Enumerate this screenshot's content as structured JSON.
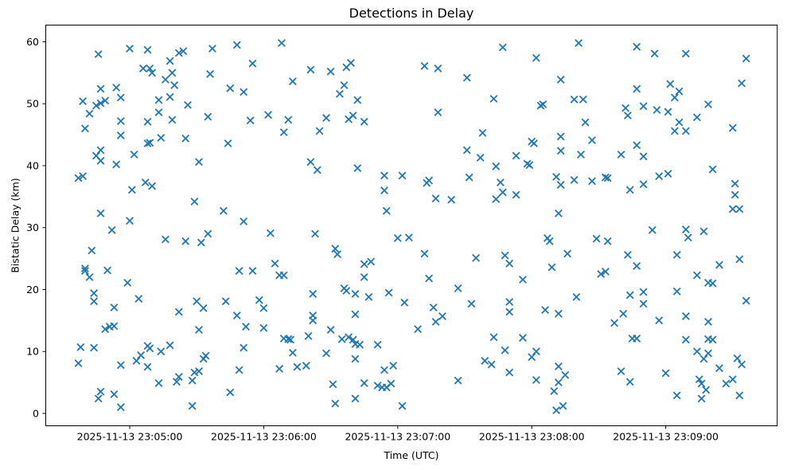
{
  "chart_data": {
    "type": "scatter",
    "title": "Detections in Delay",
    "xlabel": "Time (UTC)",
    "ylabel": "Bistatic Delay (km)",
    "marker": "x",
    "marker_color": "#1f77b4",
    "grid": false,
    "legend": null,
    "x_unit": "seconds after 2025-11-13 23:00:00 UTC",
    "xlim": [
      262.4,
      589.9
    ],
    "ylim": [
      -2.0,
      62.7
    ],
    "x_ticks": [
      {
        "value": 300,
        "label": "2025-11-13 23:05:00"
      },
      {
        "value": 360,
        "label": "2025-11-13 23:06:00"
      },
      {
        "value": 420,
        "label": "2025-11-13 23:07:00"
      },
      {
        "value": 480,
        "label": "2025-11-13 23:08:00"
      },
      {
        "value": 540,
        "label": "2025-11-13 23:09:00"
      }
    ],
    "y_ticks": [
      {
        "value": 0,
        "label": "0"
      },
      {
        "value": 10,
        "label": "10"
      },
      {
        "value": 20,
        "label": "20"
      },
      {
        "value": 30,
        "label": "30"
      },
      {
        "value": 40,
        "label": "40"
      },
      {
        "value": 50,
        "label": "50"
      },
      {
        "value": 60,
        "label": "60"
      }
    ],
    "points": [
      [
        286,
        58.0
      ],
      [
        300,
        58.9
      ],
      [
        308,
        58.7
      ],
      [
        322,
        58.2
      ],
      [
        324,
        58.5
      ],
      [
        337,
        58.9
      ],
      [
        318,
        56.9
      ],
      [
        306,
        55.7
      ],
      [
        309,
        55.7
      ],
      [
        310,
        55.0
      ],
      [
        319,
        55.0
      ],
      [
        336,
        54.8
      ],
      [
        316,
        53.9
      ],
      [
        320,
        53.0
      ],
      [
        345,
        52.5
      ],
      [
        287,
        52.4
      ],
      [
        294,
        52.6
      ],
      [
        296,
        51.0
      ],
      [
        279,
        50.4
      ],
      [
        313,
        50.6
      ],
      [
        318,
        51.1
      ],
      [
        326,
        49.8
      ],
      [
        285,
        49.7
      ],
      [
        287,
        50.1
      ],
      [
        289,
        50.5
      ],
      [
        282,
        48.4
      ],
      [
        335,
        47.9
      ],
      [
        313,
        48.6
      ],
      [
        296,
        47.2
      ],
      [
        308,
        47.1
      ],
      [
        319,
        47.4
      ],
      [
        280,
        46.0
      ],
      [
        296,
        44.9
      ],
      [
        308,
        43.6
      ],
      [
        309,
        43.7
      ],
      [
        314,
        44.5
      ],
      [
        325,
        44.4
      ],
      [
        344,
        43.6
      ],
      [
        287,
        42.5
      ],
      [
        285,
        41.6
      ],
      [
        287,
        40.8
      ],
      [
        302,
        41.8
      ],
      [
        294,
        40.2
      ],
      [
        331,
        40.6
      ],
      [
        277,
        38.0
      ],
      [
        279,
        38.3
      ],
      [
        307,
        37.3
      ],
      [
        310,
        36.7
      ],
      [
        301,
        36.1
      ],
      [
        329,
        34.2
      ],
      [
        342,
        32.7
      ],
      [
        287,
        32.3
      ],
      [
        300,
        31.1
      ],
      [
        348,
        59.5
      ],
      [
        368,
        59.8
      ],
      [
        355,
        56.5
      ],
      [
        381,
        55.5
      ],
      [
        390,
        55.2
      ],
      [
        397,
        55.9
      ],
      [
        399,
        56.6
      ],
      [
        373,
        53.6
      ],
      [
        351,
        51.9
      ],
      [
        396,
        53.0
      ],
      [
        394,
        51.6
      ],
      [
        402,
        50.6
      ],
      [
        362,
        48.2
      ],
      [
        354,
        47.3
      ],
      [
        371,
        47.4
      ],
      [
        388,
        47.7
      ],
      [
        398,
        47.5
      ],
      [
        400,
        48.1
      ],
      [
        405,
        47.1
      ],
      [
        369,
        45.4
      ],
      [
        385,
        45.6
      ],
      [
        381,
        40.6
      ],
      [
        384,
        39.3
      ],
      [
        402,
        39.6
      ],
      [
        414,
        38.4
      ],
      [
        422,
        38.4
      ],
      [
        414,
        36.0
      ],
      [
        351,
        31.0
      ],
      [
        415,
        32.7
      ],
      [
        467,
        59.1
      ],
      [
        501,
        59.8
      ],
      [
        482,
        57.4
      ],
      [
        432,
        56.1
      ],
      [
        438,
        55.7
      ],
      [
        451,
        54.2
      ],
      [
        493,
        53.9
      ],
      [
        463,
        50.8
      ],
      [
        499,
        50.7
      ],
      [
        503,
        50.7
      ],
      [
        484,
        49.7
      ],
      [
        485,
        49.9
      ],
      [
        438,
        48.6
      ],
      [
        504,
        47.0
      ],
      [
        458,
        45.3
      ],
      [
        480,
        43.9
      ],
      [
        481,
        43.6
      ],
      [
        493,
        44.7
      ],
      [
        507,
        44.1
      ],
      [
        451,
        42.5
      ],
      [
        457,
        41.3
      ],
      [
        473,
        41.6
      ],
      [
        493,
        42.4
      ],
      [
        502,
        41.8
      ],
      [
        464,
        39.9
      ],
      [
        478,
        40.3
      ],
      [
        479,
        40.1
      ],
      [
        433,
        37.2
      ],
      [
        434,
        37.6
      ],
      [
        452,
        38.1
      ],
      [
        466,
        37.3
      ],
      [
        491,
        38.2
      ],
      [
        493,
        36.9
      ],
      [
        499,
        37.7
      ],
      [
        507,
        37.5
      ],
      [
        437,
        34.7
      ],
      [
        444,
        34.5
      ],
      [
        464,
        34.6
      ],
      [
        467,
        35.7
      ],
      [
        473,
        35.3
      ],
      [
        492,
        32.3
      ],
      [
        527,
        59.2
      ],
      [
        535,
        58.1
      ],
      [
        549,
        58.1
      ],
      [
        576,
        57.3
      ],
      [
        574,
        53.3
      ],
      [
        527,
        52.4
      ],
      [
        542,
        53.2
      ],
      [
        546,
        52.0
      ],
      [
        544,
        51.0
      ],
      [
        522,
        49.3
      ],
      [
        530,
        49.6
      ],
      [
        536,
        49.0
      ],
      [
        541,
        48.7
      ],
      [
        523,
        48.1
      ],
      [
        559,
        49.9
      ],
      [
        554,
        47.8
      ],
      [
        546,
        47.0
      ],
      [
        544,
        45.6
      ],
      [
        549,
        45.6
      ],
      [
        570,
        46.1
      ],
      [
        527,
        43.3
      ],
      [
        520,
        41.8
      ],
      [
        530,
        41.5
      ],
      [
        561,
        39.4
      ],
      [
        537,
        38.3
      ],
      [
        541,
        38.7
      ],
      [
        513,
        38.1
      ],
      [
        514,
        38.0
      ],
      [
        530,
        37.0
      ],
      [
        524,
        36.1
      ],
      [
        571,
        37.1
      ],
      [
        571,
        35.3
      ],
      [
        570,
        33.0
      ],
      [
        573,
        33.0
      ],
      [
        292,
        29.6
      ],
      [
        283,
        26.3
      ],
      [
        316,
        28.1
      ],
      [
        325,
        27.8
      ],
      [
        332,
        27.6
      ],
      [
        335,
        29.0
      ],
      [
        280,
        23.4
      ],
      [
        280,
        23.0
      ],
      [
        282,
        22.0
      ],
      [
        290,
        23.1
      ],
      [
        299,
        21.1
      ],
      [
        284,
        19.4
      ],
      [
        284,
        18.1
      ],
      [
        304,
        18.5
      ],
      [
        293,
        17.1
      ],
      [
        330,
        18.1
      ],
      [
        333,
        17.0
      ],
      [
        343,
        18.1
      ],
      [
        322,
        16.4
      ],
      [
        331,
        13.5
      ],
      [
        289,
        13.6
      ],
      [
        291,
        14.0
      ],
      [
        293,
        14.1
      ],
      [
        278,
        10.7
      ],
      [
        284,
        10.6
      ],
      [
        308,
        10.9
      ],
      [
        309,
        10.5
      ],
      [
        314,
        10.0
      ],
      [
        318,
        11.0
      ],
      [
        277,
        8.1
      ],
      [
        296,
        7.8
      ],
      [
        303,
        8.5
      ],
      [
        305,
        9.4
      ],
      [
        308,
        7.5
      ],
      [
        333,
        8.8
      ],
      [
        334,
        9.3
      ],
      [
        329,
        6.6
      ],
      [
        331,
        6.8
      ],
      [
        313,
        4.9
      ],
      [
        321,
        5.1
      ],
      [
        322,
        5.9
      ],
      [
        328,
        5.3
      ],
      [
        287,
        3.5
      ],
      [
        286,
        2.4
      ],
      [
        293,
        3.1
      ],
      [
        296,
        1.0
      ],
      [
        328,
        1.2
      ],
      [
        345,
        3.4
      ],
      [
        363,
        29.1
      ],
      [
        383,
        29.0
      ],
      [
        420,
        28.3
      ],
      [
        425,
        28.4
      ],
      [
        392,
        26.6
      ],
      [
        393,
        25.7
      ],
      [
        365,
        24.2
      ],
      [
        349,
        23.0
      ],
      [
        355,
        23.0
      ],
      [
        367,
        22.3
      ],
      [
        369,
        22.3
      ],
      [
        405,
        24.1
      ],
      [
        408,
        24.5
      ],
      [
        405,
        22.0
      ],
      [
        382,
        19.3
      ],
      [
        396,
        20.2
      ],
      [
        397,
        19.8
      ],
      [
        401,
        19.3
      ],
      [
        407,
        18.8
      ],
      [
        416,
        19.5
      ],
      [
        423,
        17.9
      ],
      [
        358,
        18.3
      ],
      [
        360,
        17.0
      ],
      [
        348,
        15.8
      ],
      [
        382,
        15.8
      ],
      [
        382,
        15.0
      ],
      [
        401,
        16.0
      ],
      [
        352,
        14.0
      ],
      [
        360,
        13.8
      ],
      [
        390,
        13.5
      ],
      [
        380,
        12.5
      ],
      [
        369,
        12.1
      ],
      [
        371,
        12.0
      ],
      [
        372,
        11.9
      ],
      [
        395,
        12.0
      ],
      [
        398,
        12.3
      ],
      [
        400,
        11.9
      ],
      [
        401,
        11.2
      ],
      [
        403,
        11.1
      ],
      [
        411,
        11.1
      ],
      [
        351,
        10.6
      ],
      [
        373,
        9.8
      ],
      [
        388,
        9.7
      ],
      [
        401,
        8.8
      ],
      [
        349,
        7.0
      ],
      [
        367,
        7.2
      ],
      [
        375,
        7.5
      ],
      [
        379,
        7.7
      ],
      [
        414,
        7.0
      ],
      [
        418,
        7.7
      ],
      [
        391,
        4.7
      ],
      [
        405,
        4.9
      ],
      [
        411,
        4.5
      ],
      [
        413,
        4.2
      ],
      [
        415,
        4.2
      ],
      [
        417,
        4.8
      ],
      [
        392,
        1.6
      ],
      [
        401,
        2.4
      ],
      [
        422,
        1.2
      ],
      [
        487,
        28.3
      ],
      [
        488,
        27.8
      ],
      [
        432,
        25.8
      ],
      [
        455,
        25.1
      ],
      [
        468,
        25.5
      ],
      [
        470,
        24.2
      ],
      [
        496,
        25.8
      ],
      [
        489,
        23.6
      ],
      [
        434,
        21.8
      ],
      [
        476,
        21.6
      ],
      [
        447,
        20.2
      ],
      [
        500,
        18.8
      ],
      [
        436,
        17.1
      ],
      [
        453,
        17.7
      ],
      [
        470,
        18.0
      ],
      [
        470,
        16.4
      ],
      [
        486,
        16.7
      ],
      [
        492,
        16.1
      ],
      [
        440,
        15.7
      ],
      [
        437,
        14.8
      ],
      [
        429,
        13.6
      ],
      [
        463,
        12.3
      ],
      [
        476,
        12.2
      ],
      [
        468,
        10.2
      ],
      [
        482,
        10.0
      ],
      [
        480,
        9.1
      ],
      [
        459,
        8.5
      ],
      [
        462,
        7.9
      ],
      [
        470,
        6.6
      ],
      [
        447,
        5.3
      ],
      [
        482,
        5.4
      ],
      [
        492,
        7.6
      ],
      [
        495,
        6.2
      ],
      [
        492,
        5.0
      ],
      [
        490,
        3.6
      ],
      [
        491,
        0.5
      ],
      [
        494,
        1.2
      ],
      [
        534,
        29.6
      ],
      [
        549,
        29.7
      ],
      [
        550,
        28.4
      ],
      [
        557,
        29.4
      ],
      [
        509,
        28.2
      ],
      [
        514,
        27.8
      ],
      [
        523,
        25.6
      ],
      [
        545,
        25.6
      ],
      [
        527,
        23.8
      ],
      [
        511,
        22.5
      ],
      [
        513,
        22.9
      ],
      [
        564,
        24.0
      ],
      [
        573,
        24.9
      ],
      [
        554,
        22.3
      ],
      [
        559,
        21.1
      ],
      [
        561,
        21.0
      ],
      [
        524,
        19.1
      ],
      [
        530,
        19.6
      ],
      [
        545,
        19.7
      ],
      [
        530,
        17.7
      ],
      [
        576,
        18.2
      ],
      [
        521,
        16.1
      ],
      [
        517,
        14.6
      ],
      [
        537,
        15.0
      ],
      [
        549,
        15.7
      ],
      [
        559,
        14.8
      ],
      [
        525,
        12.1
      ],
      [
        527,
        12.1
      ],
      [
        549,
        11.9
      ],
      [
        559,
        12.0
      ],
      [
        561,
        11.9
      ],
      [
        554,
        10.0
      ],
      [
        559,
        9.7
      ],
      [
        557,
        8.8
      ],
      [
        572,
        8.9
      ],
      [
        574,
        7.9
      ],
      [
        564,
        7.3
      ],
      [
        520,
        6.8
      ],
      [
        540,
        6.5
      ],
      [
        524,
        5.1
      ],
      [
        555,
        5.5
      ],
      [
        556,
        4.8
      ],
      [
        567,
        4.8
      ],
      [
        570,
        5.5
      ],
      [
        558,
        3.8
      ],
      [
        545,
        2.9
      ],
      [
        556,
        2.4
      ],
      [
        573,
        2.9
      ]
    ]
  }
}
